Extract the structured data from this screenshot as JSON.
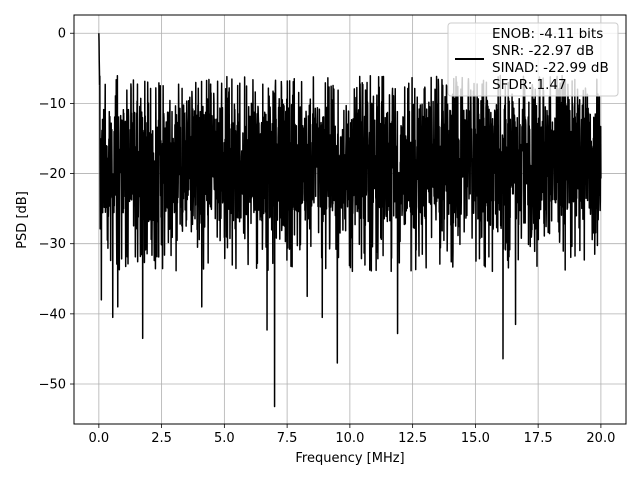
{
  "chart_data": {
    "type": "line",
    "xlabel": "Frequency [MHz]",
    "ylabel": "PSD [dB]",
    "xlim": [
      -0.99,
      21.0
    ],
    "ylim": [
      -55.7,
      2.6
    ],
    "xticks": [
      0.0,
      2.5,
      5.0,
      7.5,
      10.0,
      12.5,
      15.0,
      17.5,
      20.0
    ],
    "xtick_labels": [
      "0.0",
      "2.5",
      "5.0",
      "7.5",
      "10.0",
      "12.5",
      "15.0",
      "17.5",
      "20.0"
    ],
    "yticks": [
      0,
      -10,
      -20,
      -30,
      -40,
      -50
    ],
    "ytick_labels": [
      "0",
      "−10",
      "−20",
      "−30",
      "−40",
      "−50"
    ],
    "grid": true,
    "legend_position": "top-right",
    "line_color": "#000000",
    "legend": {
      "lines": [
        "ENOB: -4.11 bits",
        "SNR: -22.97 dB",
        "SINAD: -22.99 dB",
        "SFDR: 1.47"
      ]
    },
    "series": [
      {
        "description_of_shape": "dense noise floor",
        "x_range": [
          0.0,
          20.0
        ],
        "peak": {
          "x": 0.0,
          "y": 0.0
        },
        "band_top": -8,
        "band_bottom": -29,
        "notable_dips": [
          {
            "x": 0.1,
            "y": -38
          },
          {
            "x": 0.55,
            "y": -40.5
          },
          {
            "x": 0.75,
            "y": -39
          },
          {
            "x": 1.75,
            "y": -43.5
          },
          {
            "x": 4.1,
            "y": -39
          },
          {
            "x": 6.7,
            "y": -42.3
          },
          {
            "x": 7.0,
            "y": -53.2
          },
          {
            "x": 8.3,
            "y": -37.5
          },
          {
            "x": 8.9,
            "y": -40.5
          },
          {
            "x": 9.5,
            "y": -47
          },
          {
            "x": 11.9,
            "y": -42.8
          },
          {
            "x": 16.1,
            "y": -46.4
          },
          {
            "x": 16.6,
            "y": -41.5
          }
        ]
      }
    ]
  }
}
